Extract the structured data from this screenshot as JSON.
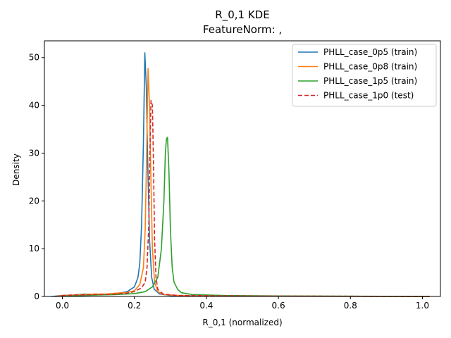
{
  "chart_data": {
    "type": "line",
    "title": "R_0,1 KDE",
    "subtitle": "FeatureNorm: ,",
    "xlabel": "R_0,1 (normalized)",
    "ylabel": "Density",
    "xlim": [
      -0.05,
      1.05
    ],
    "ylim": [
      0,
      53.5
    ],
    "xticks": [
      0.0,
      0.2,
      0.4,
      0.6,
      0.8,
      1.0
    ],
    "xtick_labels": [
      "0.0",
      "0.2",
      "0.4",
      "0.6",
      "0.8",
      "1.0"
    ],
    "yticks": [
      0,
      10,
      20,
      30,
      40,
      50
    ],
    "ytick_labels": [
      "0",
      "10",
      "20",
      "30",
      "40",
      "50"
    ],
    "grid": false,
    "legend_position": "top-right",
    "series": [
      {
        "name": "PHLL_case_0p5 (train)",
        "color": "#1f77b4",
        "dash": "solid",
        "points": [
          [
            -0.03,
            0
          ],
          [
            0.0,
            0.2
          ],
          [
            0.03,
            0.3
          ],
          [
            0.06,
            0.5
          ],
          [
            0.09,
            0.4
          ],
          [
            0.12,
            0.4
          ],
          [
            0.15,
            0.6
          ],
          [
            0.18,
            1.0
          ],
          [
            0.2,
            2.0
          ],
          [
            0.21,
            4.0
          ],
          [
            0.215,
            7.0
          ],
          [
            0.22,
            15.0
          ],
          [
            0.225,
            32.0
          ],
          [
            0.229,
            51.0
          ],
          [
            0.233,
            44.0
          ],
          [
            0.237,
            28.0
          ],
          [
            0.242,
            12.0
          ],
          [
            0.248,
            4.0
          ],
          [
            0.255,
            1.5
          ],
          [
            0.27,
            0.5
          ],
          [
            0.3,
            0.2
          ],
          [
            0.4,
            0.1
          ],
          [
            0.6,
            0.05
          ],
          [
            1.02,
            0
          ]
        ]
      },
      {
        "name": "PHLL_case_0p8 (train)",
        "color": "#ff7f0e",
        "dash": "solid",
        "points": [
          [
            -0.02,
            0
          ],
          [
            0.0,
            0.2
          ],
          [
            0.03,
            0.3
          ],
          [
            0.06,
            0.4
          ],
          [
            0.09,
            0.5
          ],
          [
            0.12,
            0.5
          ],
          [
            0.15,
            0.7
          ],
          [
            0.18,
            0.8
          ],
          [
            0.2,
            1.2
          ],
          [
            0.215,
            2.5
          ],
          [
            0.225,
            6.0
          ],
          [
            0.23,
            14.0
          ],
          [
            0.234,
            30.0
          ],
          [
            0.238,
            47.7
          ],
          [
            0.242,
            40.0
          ],
          [
            0.246,
            24.0
          ],
          [
            0.25,
            10.0
          ],
          [
            0.256,
            3.0
          ],
          [
            0.265,
            1.0
          ],
          [
            0.28,
            0.4
          ],
          [
            0.35,
            0.1
          ],
          [
            0.6,
            0.05
          ],
          [
            1.02,
            0
          ]
        ]
      },
      {
        "name": "PHLL_case_1p5 (train)",
        "color": "#2ca02c",
        "dash": "solid",
        "points": [
          [
            -0.02,
            0
          ],
          [
            0.0,
            0.1
          ],
          [
            0.05,
            0.2
          ],
          [
            0.1,
            0.3
          ],
          [
            0.15,
            0.4
          ],
          [
            0.2,
            0.6
          ],
          [
            0.23,
            1.0
          ],
          [
            0.25,
            2.0
          ],
          [
            0.265,
            4.0
          ],
          [
            0.275,
            10.0
          ],
          [
            0.282,
            20.0
          ],
          [
            0.286,
            30.0
          ],
          [
            0.289,
            33.0
          ],
          [
            0.292,
            33.3
          ],
          [
            0.296,
            26.0
          ],
          [
            0.3,
            14.0
          ],
          [
            0.305,
            6.0
          ],
          [
            0.31,
            3.0
          ],
          [
            0.32,
            1.5
          ],
          [
            0.33,
            0.8
          ],
          [
            0.36,
            0.4
          ],
          [
            0.45,
            0.2
          ],
          [
            0.6,
            0.1
          ],
          [
            0.8,
            0.05
          ],
          [
            1.02,
            0
          ]
        ]
      },
      {
        "name": "PHLL_case_1p0 (test)",
        "color": "#d62728",
        "dash": "dashed",
        "points": [
          [
            -0.02,
            0
          ],
          [
            0.0,
            0.2
          ],
          [
            0.03,
            0.3
          ],
          [
            0.06,
            0.3
          ],
          [
            0.09,
            0.4
          ],
          [
            0.12,
            0.4
          ],
          [
            0.15,
            0.5
          ],
          [
            0.18,
            0.7
          ],
          [
            0.2,
            1.0
          ],
          [
            0.22,
            1.8
          ],
          [
            0.23,
            3.0
          ],
          [
            0.235,
            6.0
          ],
          [
            0.24,
            15.0
          ],
          [
            0.243,
            30.0
          ],
          [
            0.246,
            41.0
          ],
          [
            0.25,
            40.0
          ],
          [
            0.253,
            28.0
          ],
          [
            0.256,
            12.0
          ],
          [
            0.26,
            4.0
          ],
          [
            0.265,
            1.5
          ],
          [
            0.28,
            0.5
          ],
          [
            0.32,
            0.2
          ],
          [
            0.5,
            0.1
          ],
          [
            1.02,
            0
          ]
        ]
      }
    ]
  }
}
